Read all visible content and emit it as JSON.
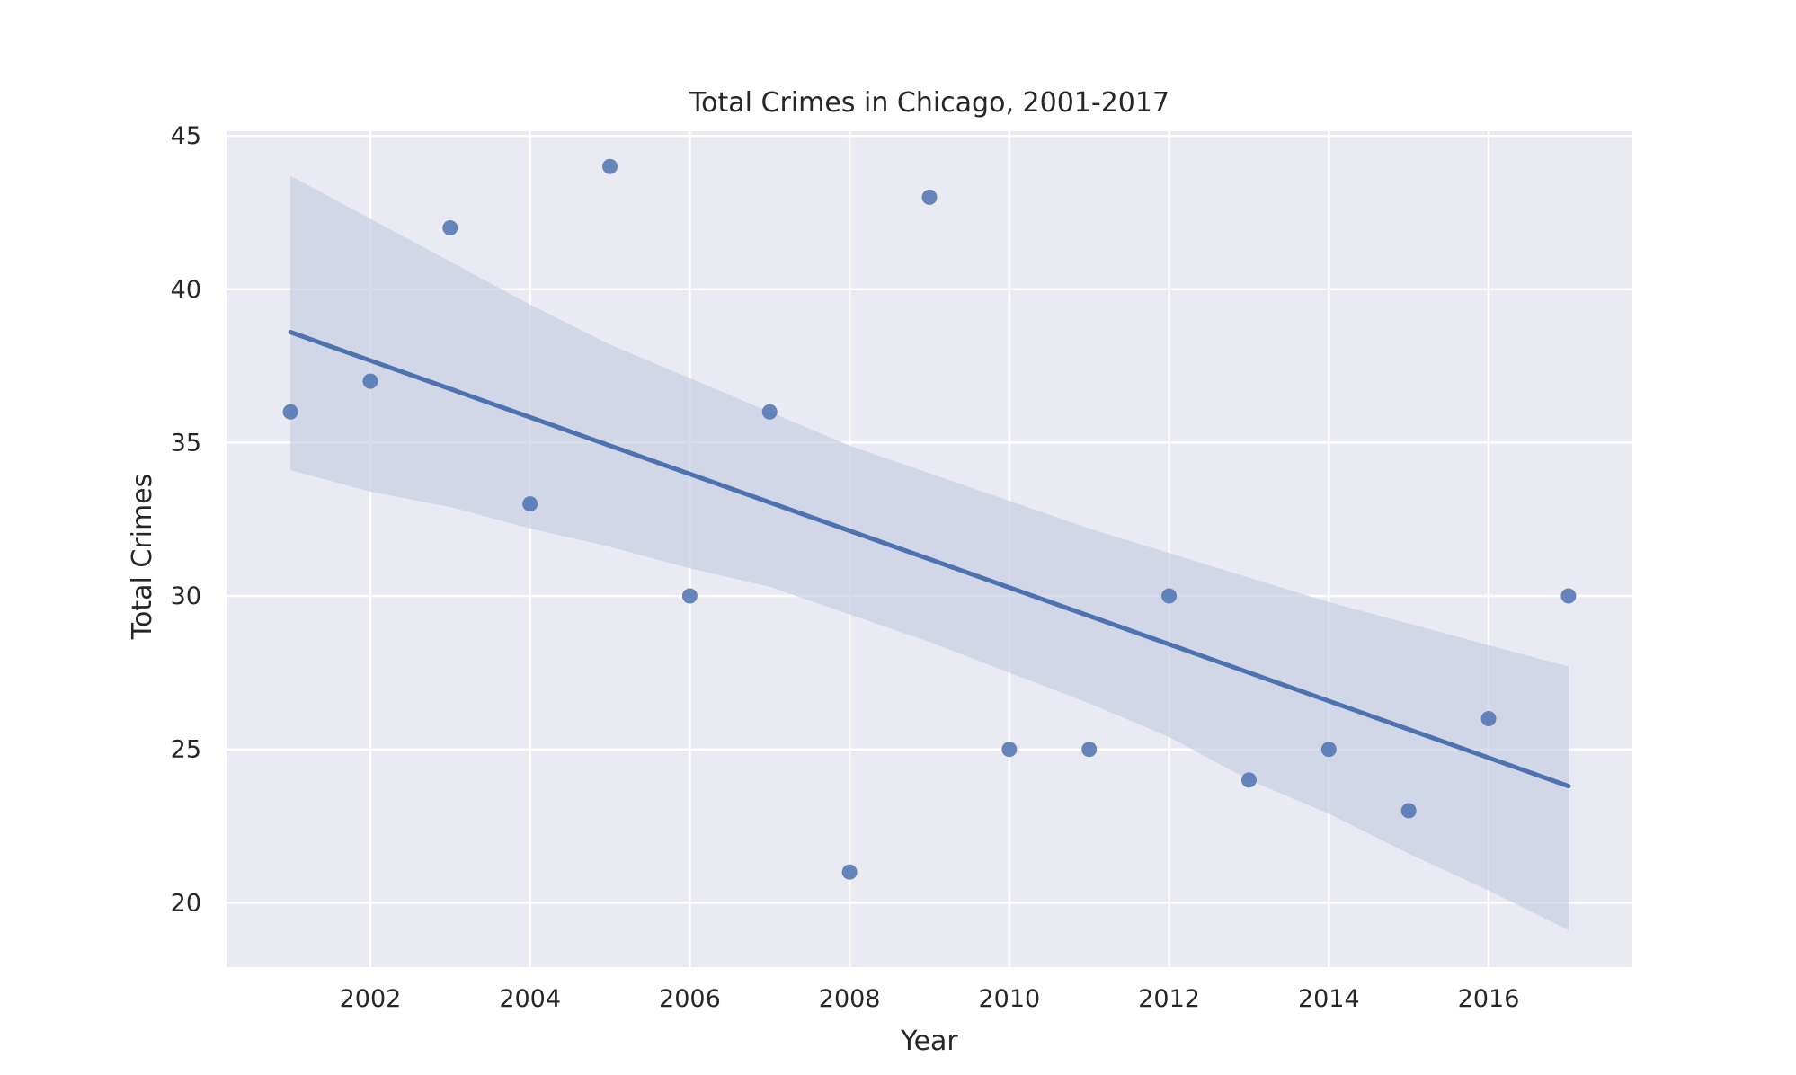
{
  "chart_data": {
    "type": "scatter",
    "title": "Total Crimes in Chicago, 2001-2017",
    "xlabel": "Year",
    "ylabel": "Total Crimes",
    "xlim": [
      2000.2,
      2017.8
    ],
    "ylim": [
      17.9,
      45.15
    ],
    "xticks": [
      2002,
      2004,
      2006,
      2008,
      2010,
      2012,
      2014,
      2016
    ],
    "xtick_labels": [
      "2002",
      "2004",
      "2006",
      "2008",
      "2010",
      "2012",
      "2014",
      "2016"
    ],
    "yticks": [
      20,
      25,
      30,
      35,
      40,
      45
    ],
    "ytick_labels": [
      "20",
      "25",
      "30",
      "35",
      "40",
      "45"
    ],
    "grid": true,
    "colors": {
      "background": "#eaeaf2",
      "grid": "#ffffff",
      "series": "#4c72b0",
      "band": "#c7cfe4"
    },
    "x": [
      2001,
      2002,
      2003,
      2004,
      2005,
      2006,
      2007,
      2008,
      2009,
      2010,
      2011,
      2012,
      2013,
      2014,
      2015,
      2016,
      2017
    ],
    "y": [
      36,
      37,
      42,
      33,
      44,
      30,
      36,
      21,
      43,
      25,
      25,
      30,
      24,
      25,
      23,
      26,
      30
    ],
    "regression": {
      "x": [
        2001,
        2017
      ],
      "y": [
        38.6,
        23.8
      ]
    },
    "confidence_band": {
      "x": [
        2001,
        2002,
        2003,
        2004,
        2005,
        2006,
        2007,
        2008,
        2009,
        2010,
        2011,
        2012,
        2013,
        2014,
        2015,
        2016,
        2017
      ],
      "upper": [
        43.7,
        42.3,
        40.9,
        39.5,
        38.2,
        37.1,
        36.0,
        34.9,
        34.0,
        33.1,
        32.2,
        31.4,
        30.6,
        29.8,
        29.1,
        28.4,
        27.7
      ],
      "lower": [
        34.1,
        33.4,
        32.9,
        32.2,
        31.6,
        30.9,
        30.3,
        29.4,
        28.5,
        27.5,
        26.5,
        25.4,
        24.0,
        22.9,
        21.6,
        20.4,
        19.1
      ]
    }
  }
}
